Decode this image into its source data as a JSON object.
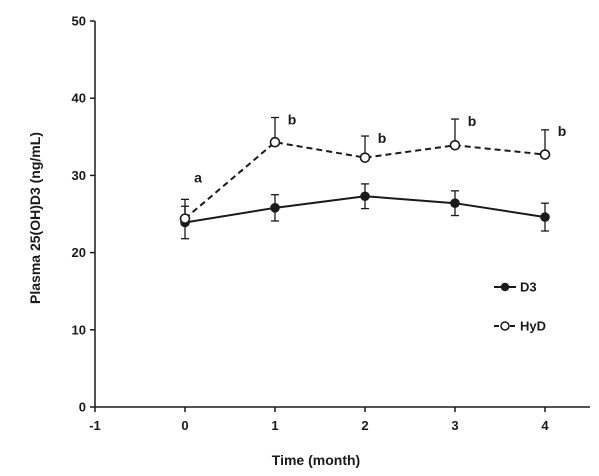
{
  "chart_data": {
    "type": "line",
    "title": "",
    "xlabel": "Time (month)",
    "ylabel": "Plasma 25(OH)D3 (ng/mL)",
    "xlim": [
      -1,
      4.5
    ],
    "ylim": [
      0,
      50
    ],
    "x_ticks": [
      -1,
      0,
      1,
      2,
      3,
      4
    ],
    "y_ticks": [
      0,
      10,
      20,
      30,
      40,
      50
    ],
    "grid": false,
    "legend_position": "right",
    "series": [
      {
        "name": "D3",
        "marker": "filled-circle",
        "line_style": "solid",
        "error_direction": "both",
        "x": [
          0,
          1,
          2,
          3,
          4
        ],
        "y": [
          23.9,
          25.8,
          27.3,
          26.4,
          24.6
        ],
        "error": [
          2.1,
          1.7,
          1.6,
          1.6,
          1.8
        ]
      },
      {
        "name": "HyD",
        "marker": "open-circle",
        "line_style": "dashed",
        "error_direction": "up",
        "x": [
          0,
          1,
          2,
          3,
          4
        ],
        "y": [
          24.4,
          34.3,
          32.3,
          33.9,
          32.7
        ],
        "error": [
          2.5,
          3.2,
          2.8,
          3.4,
          3.2
        ]
      }
    ],
    "annotations": [
      {
        "x": 0,
        "text": "a",
        "y": 29.1
      },
      {
        "x": 1,
        "text": "b",
        "y": 36.6
      },
      {
        "x": 2,
        "text": "b",
        "y": 34.2
      },
      {
        "x": 3,
        "text": "b",
        "y": 36.4
      },
      {
        "x": 4,
        "text": "b",
        "y": 35.1
      }
    ],
    "colors": {
      "line": "#1a1a1a",
      "marker_fill_open": "#ffffff"
    }
  }
}
